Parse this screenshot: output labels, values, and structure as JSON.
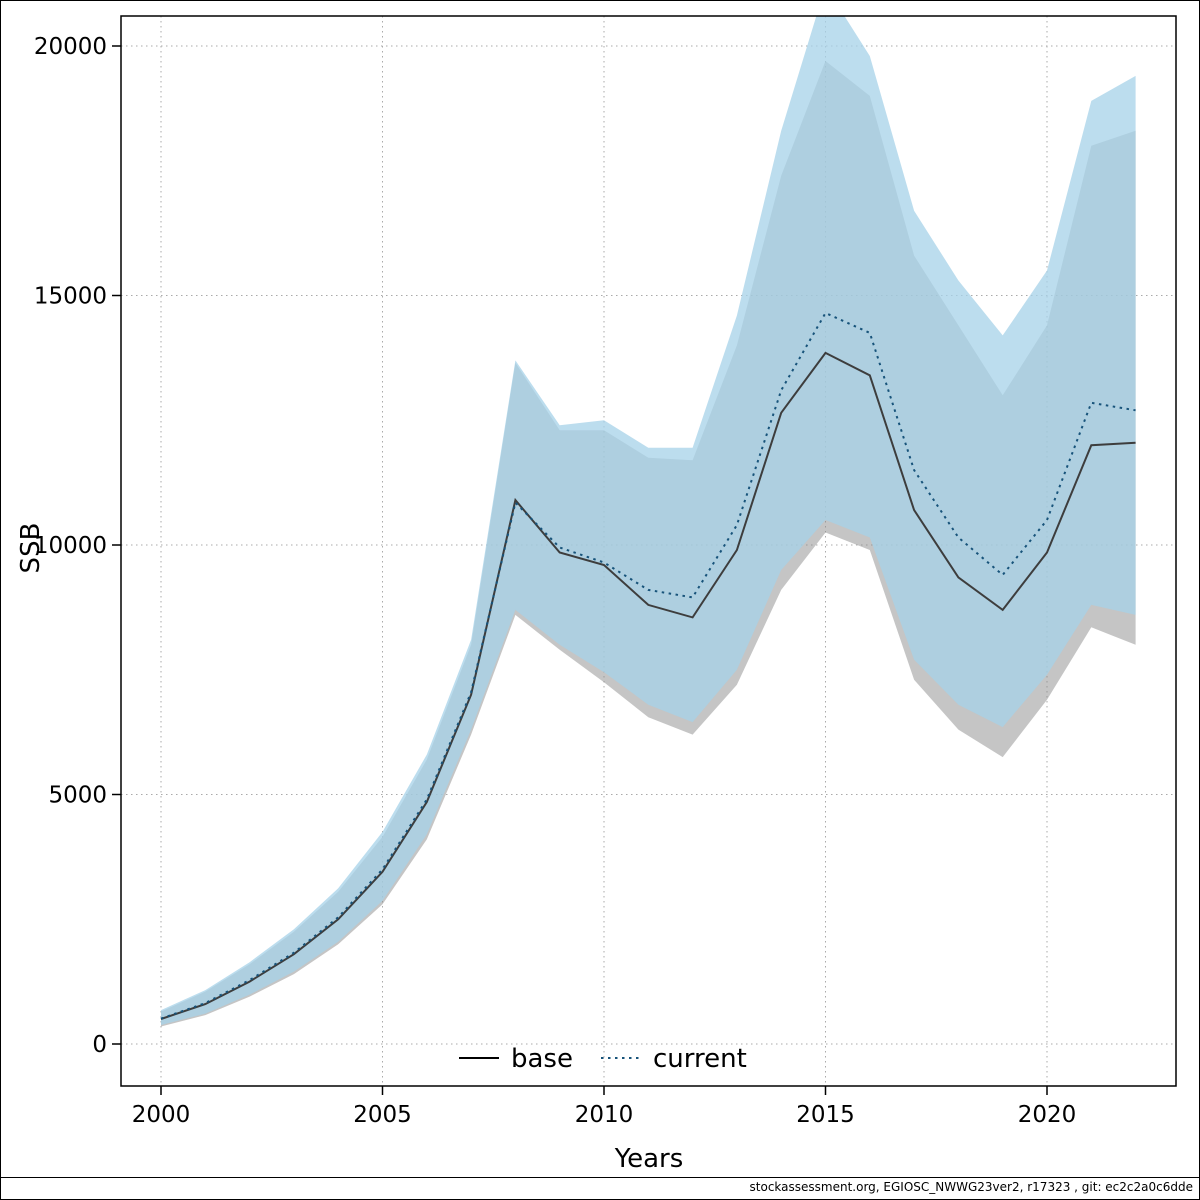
{
  "footer": {
    "text": "stockassessment.org, EGIOSC_NWWG23ver2, r17323 , git: ec2c2a0c6dde"
  },
  "chart_data": {
    "type": "line",
    "title": "",
    "xlabel": "Years",
    "ylabel": "SSB",
    "grid": "dotted",
    "grid_color": "#aaaaaa",
    "legend_position": "bottom-center-inside",
    "x_ticks": [
      2000,
      2005,
      2010,
      2015,
      2020
    ],
    "y_ticks": [
      0,
      5000,
      10000,
      15000,
      20000
    ],
    "ylim": [
      0,
      20000
    ],
    "x": [
      2000,
      2001,
      2002,
      2003,
      2004,
      2005,
      2006,
      2007,
      2008,
      2009,
      2010,
      2011,
      2012,
      2013,
      2014,
      2015,
      2016,
      2017,
      2018,
      2019,
      2020,
      2021,
      2022
    ],
    "series": [
      {
        "name": "base",
        "style": "solid",
        "color": "#3d3d3d",
        "band_color": "#8c8c8c",
        "band_opacity": 0.5,
        "values": [
          500,
          800,
          1250,
          1800,
          2500,
          3450,
          4850,
          7000,
          10900,
          9850,
          9600,
          8800,
          8550,
          9900,
          12650,
          13850,
          13400,
          10700,
          9350,
          8700,
          9850,
          12000,
          12050
        ],
        "lower": [
          350,
          580,
          950,
          1400,
          2000,
          2800,
          4100,
          6200,
          8600,
          7900,
          7250,
          6550,
          6200,
          7200,
          9100,
          10250,
          9900,
          7300,
          6300,
          5750,
          6900,
          8350,
          8000
        ],
        "upper": [
          650,
          1050,
          1600,
          2250,
          3050,
          4150,
          5700,
          8000,
          13650,
          12300,
          12300,
          11750,
          11700,
          14000,
          17400,
          19700,
          19000,
          15800,
          14400,
          13000,
          14400,
          18000,
          18300
        ]
      },
      {
        "name": "current",
        "style": "dotted",
        "color": "#17537a",
        "band_color": "#a6d2e8",
        "band_opacity": 0.75,
        "values": [
          510,
          820,
          1280,
          1830,
          2540,
          3500,
          4900,
          7050,
          10850,
          9950,
          9650,
          9100,
          8950,
          10400,
          13100,
          14650,
          14250,
          11500,
          10150,
          9400,
          10500,
          12850,
          12700
        ],
        "lower": [
          380,
          610,
          990,
          1450,
          2050,
          2870,
          4200,
          6300,
          8700,
          8000,
          7450,
          6800,
          6450,
          7500,
          9500,
          10500,
          10150,
          7700,
          6800,
          6350,
          7400,
          8800,
          8600
        ],
        "upper": [
          680,
          1080,
          1640,
          2300,
          3120,
          4250,
          5800,
          8100,
          13700,
          12400,
          12500,
          11950,
          11950,
          14600,
          18300,
          21200,
          19800,
          16700,
          15300,
          14200,
          15500,
          18900,
          19400
        ]
      }
    ]
  }
}
